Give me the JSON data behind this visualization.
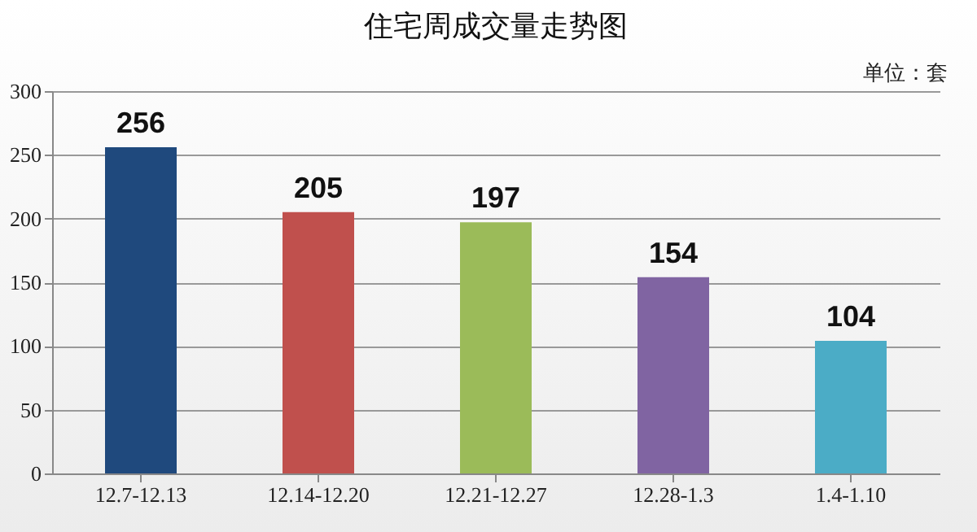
{
  "chart_data": {
    "type": "bar",
    "title": "住宅周成交量走势图",
    "annotations": [
      "单位：套"
    ],
    "categories": [
      "12.7-12.13",
      "12.14-12.20",
      "12.21-12.27",
      "12.28-1.3",
      "1.4-1.10"
    ],
    "values": [
      256,
      205,
      197,
      154,
      104
    ],
    "colors": [
      "#1f497d",
      "#c0504d",
      "#9bbb59",
      "#8064a2",
      "#4bacc6"
    ],
    "ylim": [
      0,
      300
    ],
    "yticks": [
      0,
      50,
      100,
      150,
      200,
      250,
      300
    ],
    "grid": true,
    "data_labels": true
  }
}
